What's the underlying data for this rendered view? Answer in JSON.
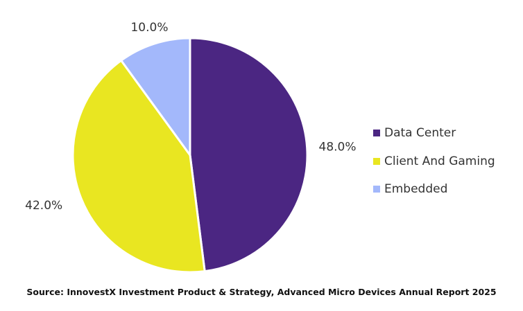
{
  "chart_data": {
    "type": "pie",
    "title": "",
    "categories": [
      "Data Center",
      "Client And Gaming",
      "Embedded"
    ],
    "values": [
      48.0,
      42.0,
      10.0
    ],
    "value_labels": [
      "48.0%",
      "42.0%",
      "10.0%"
    ],
    "colors": [
      "#4b2682",
      "#e9e621",
      "#a3b8fb"
    ],
    "start": "12 o'clock",
    "direction": "clockwise",
    "legend_position": "right"
  },
  "legend": {
    "items": [
      {
        "label": "Data Center",
        "color": "#4b2682"
      },
      {
        "label": "Client And Gaming",
        "color": "#e9e621"
      },
      {
        "label": "Embedded",
        "color": "#a3b8fb"
      }
    ]
  },
  "footer": {
    "source": "Source: InnovestX Investment Product & Strategy, Advanced Micro Devices Annual Report 2025"
  }
}
